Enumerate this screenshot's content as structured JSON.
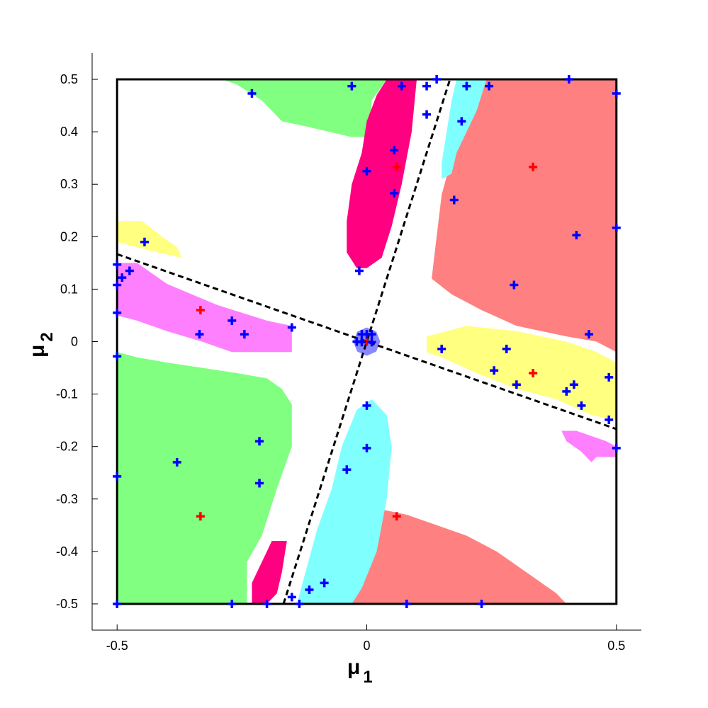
{
  "chart_data": {
    "type": "scatter",
    "xlabel": "μ",
    "xlabel_subscript": "1",
    "ylabel": "μ",
    "ylabel_subscript": "2",
    "xlim": [
      -0.55,
      0.55
    ],
    "ylim": [
      -0.55,
      0.55
    ],
    "xticks": [
      -0.5,
      0,
      0.5
    ],
    "xtick_labels": [
      "-0.5",
      "0",
      "0.5"
    ],
    "yticks": [
      0.5,
      0.4,
      0.3,
      0.2,
      0.1,
      0,
      -0.1,
      -0.2,
      -0.3,
      -0.4,
      -0.5
    ],
    "ytick_labels": [
      "0.5",
      "0.4",
      "0.3",
      "0.2",
      "0.1",
      "0",
      "-0.1",
      "-0.2",
      "-0.3",
      "-0.4",
      "-0.5"
    ],
    "grid": false,
    "box": {
      "x": [
        -0.5,
        0.5
      ],
      "y": [
        -0.5,
        0.5
      ]
    },
    "dashed_lines": [
      {
        "from": [
          -0.5,
          0.1667
        ],
        "to": [
          0.5,
          -0.1667
        ]
      },
      {
        "from": [
          -0.1667,
          -0.5
        ],
        "to": [
          0.1667,
          0.5
        ]
      }
    ],
    "regions": [
      {
        "color": "#80ff80",
        "points": [
          [
            -0.29,
            0.5
          ],
          [
            0.04,
            0.5
          ],
          [
            0.01,
            0.46
          ],
          [
            0.005,
            0.39
          ],
          [
            -0.03,
            0.39
          ],
          [
            -0.12,
            0.41
          ],
          [
            -0.17,
            0.42
          ],
          [
            -0.21,
            0.46
          ],
          [
            -0.26,
            0.49
          ]
        ]
      },
      {
        "color": "#80ff80",
        "points": [
          [
            -0.5,
            -0.02
          ],
          [
            -0.5,
            -0.5
          ],
          [
            -0.24,
            -0.5
          ],
          [
            -0.24,
            -0.42
          ],
          [
            -0.21,
            -0.37
          ],
          [
            -0.18,
            -0.28
          ],
          [
            -0.15,
            -0.2
          ],
          [
            -0.15,
            -0.12
          ],
          [
            -0.17,
            -0.09
          ],
          [
            -0.2,
            -0.07
          ],
          [
            -0.26,
            -0.06
          ],
          [
            -0.33,
            -0.05
          ],
          [
            -0.4,
            -0.04
          ],
          [
            -0.46,
            -0.03
          ]
        ]
      },
      {
        "color": "#ff8080",
        "points": [
          [
            0.24,
            0.5
          ],
          [
            0.5,
            0.5
          ],
          [
            0.5,
            -0.02
          ],
          [
            0.46,
            0.0
          ],
          [
            0.4,
            0.01
          ],
          [
            0.3,
            0.03
          ],
          [
            0.23,
            0.06
          ],
          [
            0.17,
            0.09
          ],
          [
            0.13,
            0.12
          ],
          [
            0.14,
            0.2
          ],
          [
            0.15,
            0.28
          ],
          [
            0.17,
            0.35
          ],
          [
            0.19,
            0.41
          ],
          [
            0.22,
            0.47
          ]
        ]
      },
      {
        "color": "#ff8080",
        "points": [
          [
            -0.03,
            -0.5
          ],
          [
            0.4,
            -0.5
          ],
          [
            0.38,
            -0.48
          ],
          [
            0.32,
            -0.44
          ],
          [
            0.26,
            -0.4
          ],
          [
            0.2,
            -0.37
          ],
          [
            0.14,
            -0.35
          ],
          [
            0.08,
            -0.33
          ],
          [
            0.03,
            -0.32
          ],
          [
            0.0,
            -0.36
          ],
          [
            -0.02,
            -0.42
          ]
        ]
      },
      {
        "color": "#ff0080",
        "points": [
          [
            0.04,
            0.5
          ],
          [
            0.1,
            0.5
          ],
          [
            0.09,
            0.4
          ],
          [
            0.07,
            0.3
          ],
          [
            0.05,
            0.22
          ],
          [
            0.03,
            0.16
          ],
          [
            0.0,
            0.14
          ],
          [
            -0.02,
            0.14
          ],
          [
            -0.04,
            0.17
          ],
          [
            -0.04,
            0.23
          ],
          [
            -0.03,
            0.3
          ],
          [
            -0.01,
            0.36
          ],
          [
            0.0,
            0.42
          ],
          [
            0.02,
            0.47
          ]
        ]
      },
      {
        "color": "#ff0080",
        "points": [
          [
            -0.2,
            -0.5
          ],
          [
            -0.23,
            -0.5
          ],
          [
            -0.23,
            -0.46
          ],
          [
            -0.21,
            -0.42
          ],
          [
            -0.2,
            -0.4
          ],
          [
            -0.19,
            -0.38
          ],
          [
            -0.16,
            -0.38
          ],
          [
            -0.17,
            -0.44
          ],
          [
            -0.18,
            -0.48
          ]
        ]
      },
      {
        "color": "#80ffff",
        "points": [
          [
            0.18,
            0.5
          ],
          [
            0.24,
            0.5
          ],
          [
            0.22,
            0.44
          ],
          [
            0.2,
            0.4
          ],
          [
            0.18,
            0.36
          ],
          [
            0.17,
            0.32
          ],
          [
            0.15,
            0.31
          ],
          [
            0.15,
            0.34
          ],
          [
            0.16,
            0.4
          ],
          [
            0.17,
            0.46
          ]
        ]
      },
      {
        "color": "#80ffff",
        "points": [
          [
            -0.14,
            -0.5
          ],
          [
            -0.03,
            -0.5
          ],
          [
            -0.01,
            -0.47
          ],
          [
            0.02,
            -0.4
          ],
          [
            0.04,
            -0.3
          ],
          [
            0.05,
            -0.2
          ],
          [
            0.04,
            -0.14
          ],
          [
            0.01,
            -0.11
          ],
          [
            -0.02,
            -0.13
          ],
          [
            -0.05,
            -0.2
          ],
          [
            -0.07,
            -0.28
          ],
          [
            -0.1,
            -0.36
          ],
          [
            -0.12,
            -0.43
          ]
        ]
      },
      {
        "color": "#ffff80",
        "points": [
          [
            -0.5,
            0.23
          ],
          [
            -0.45,
            0.23
          ],
          [
            -0.41,
            0.2
          ],
          [
            -0.38,
            0.18
          ],
          [
            -0.37,
            0.16
          ],
          [
            -0.42,
            0.17
          ],
          [
            -0.5,
            0.19
          ]
        ]
      },
      {
        "color": "#ffff80",
        "points": [
          [
            0.12,
            0.01
          ],
          [
            0.2,
            0.03
          ],
          [
            0.3,
            0.02
          ],
          [
            0.4,
            0.0
          ],
          [
            0.46,
            -0.02
          ],
          [
            0.5,
            -0.04
          ],
          [
            0.5,
            -0.15
          ],
          [
            0.45,
            -0.14
          ],
          [
            0.38,
            -0.11
          ],
          [
            0.3,
            -0.09
          ],
          [
            0.22,
            -0.06
          ],
          [
            0.15,
            -0.03
          ],
          [
            0.12,
            -0.02
          ]
        ]
      },
      {
        "color": "#ff80ff",
        "points": [
          [
            -0.5,
            0.15
          ],
          [
            -0.46,
            0.15
          ],
          [
            -0.4,
            0.11
          ],
          [
            -0.3,
            0.07
          ],
          [
            -0.2,
            0.04
          ],
          [
            -0.15,
            0.03
          ],
          [
            -0.15,
            -0.02
          ],
          [
            -0.2,
            -0.02
          ],
          [
            -0.27,
            -0.02
          ],
          [
            -0.33,
            0.0
          ],
          [
            -0.4,
            0.02
          ],
          [
            -0.46,
            0.04
          ],
          [
            -0.5,
            0.05
          ]
        ]
      },
      {
        "color": "#ff80ff",
        "points": [
          [
            0.39,
            -0.17
          ],
          [
            0.42,
            -0.17
          ],
          [
            0.48,
            -0.19
          ],
          [
            0.5,
            -0.2
          ],
          [
            0.5,
            -0.22
          ],
          [
            0.46,
            -0.22
          ],
          [
            0.45,
            -0.23
          ],
          [
            0.43,
            -0.21
          ],
          [
            0.4,
            -0.19
          ]
        ]
      },
      {
        "color": "#8888ff",
        "points": [
          [
            -0.027,
            0.0
          ],
          [
            -0.019,
            0.019
          ],
          [
            0.0,
            0.027
          ],
          [
            0.019,
            0.019
          ],
          [
            0.027,
            0.0
          ],
          [
            0.019,
            -0.019
          ],
          [
            0.0,
            -0.027
          ],
          [
            -0.019,
            -0.019
          ]
        ]
      }
    ],
    "series": [
      {
        "color": "#ff0000",
        "marker": "+",
        "points": [
          [
            0.0,
            0.0
          ],
          [
            0.06,
            0.333
          ],
          [
            0.333,
            0.333
          ],
          [
            0.333,
            -0.06
          ],
          [
            0.06,
            -0.333
          ],
          [
            -0.333,
            -0.333
          ],
          [
            -0.333,
            0.06
          ]
        ]
      },
      {
        "color": "#0000ff",
        "marker": "+",
        "points": [
          [
            -0.23,
            0.473
          ],
          [
            -0.03,
            0.487
          ],
          [
            0.07,
            0.487
          ],
          [
            0.12,
            0.487
          ],
          [
            0.14,
            0.5
          ],
          [
            0.2,
            0.487
          ],
          [
            0.245,
            0.487
          ],
          [
            0.405,
            0.5
          ],
          [
            0.5,
            0.473
          ],
          [
            0.12,
            0.433
          ],
          [
            0.19,
            0.42
          ],
          [
            0.055,
            0.365
          ],
          [
            0.0,
            0.325
          ],
          [
            0.055,
            0.283
          ],
          [
            0.175,
            0.27
          ],
          [
            0.42,
            0.203
          ],
          [
            0.5,
            0.217
          ],
          [
            -0.445,
            0.19
          ],
          [
            -0.015,
            0.135
          ],
          [
            0.295,
            0.108
          ],
          [
            -0.5,
            0.147
          ],
          [
            -0.5,
            0.108
          ],
          [
            -0.49,
            0.122
          ],
          [
            -0.475,
            0.135
          ],
          [
            -0.5,
            0.055
          ],
          [
            -0.335,
            0.014
          ],
          [
            -0.27,
            0.04
          ],
          [
            -0.245,
            0.014
          ],
          [
            -0.15,
            0.027
          ],
          [
            -0.02,
            0.0
          ],
          [
            -0.01,
            0.014
          ],
          [
            0.0,
            0.014
          ],
          [
            0.01,
            0.014
          ],
          [
            -0.01,
            -0.001
          ],
          [
            0.01,
            -0.001
          ],
          [
            0.15,
            -0.014
          ],
          [
            0.28,
            -0.014
          ],
          [
            0.445,
            0.014
          ],
          [
            0.255,
            -0.055
          ],
          [
            0.3,
            -0.082
          ],
          [
            0.415,
            -0.082
          ],
          [
            0.4,
            -0.095
          ],
          [
            0.485,
            -0.068
          ],
          [
            0.43,
            -0.122
          ],
          [
            0.485,
            -0.149
          ],
          [
            -0.5,
            -0.028
          ],
          [
            0.0,
            -0.122
          ],
          [
            0.0,
            -0.203
          ],
          [
            -0.215,
            -0.19
          ],
          [
            0.5,
            -0.203
          ],
          [
            -0.38,
            -0.23
          ],
          [
            -0.04,
            -0.244
          ],
          [
            -0.5,
            -0.257
          ],
          [
            -0.215,
            -0.27
          ],
          [
            -0.15,
            -0.487
          ],
          [
            -0.115,
            -0.473
          ],
          [
            -0.085,
            -0.46
          ],
          [
            -0.5,
            -0.5
          ],
          [
            -0.27,
            -0.5
          ],
          [
            -0.2,
            -0.5
          ],
          [
            -0.135,
            -0.5
          ],
          [
            0.08,
            -0.5
          ],
          [
            0.23,
            -0.5
          ]
        ]
      }
    ]
  }
}
